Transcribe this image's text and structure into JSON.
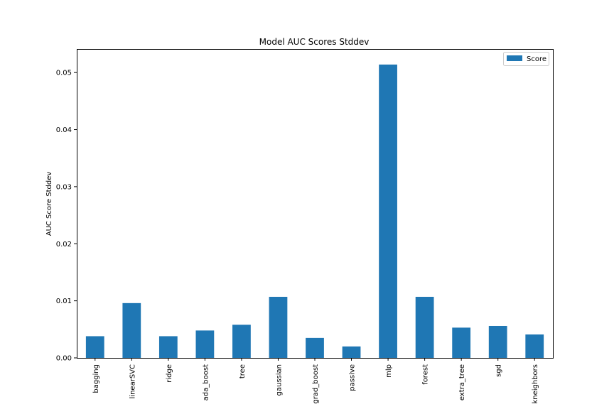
{
  "chart_data": {
    "type": "bar",
    "title": "Model AUC Scores Stddev",
    "xlabel": "",
    "ylabel": "AUC Score Stddev",
    "categories": [
      "bagging",
      "linearSVC",
      "ridge",
      "ada_boost",
      "tree",
      "gaussian",
      "grad_boost",
      "passive",
      "mlp",
      "forest",
      "extra_tree",
      "sgd",
      "kneighbors"
    ],
    "series": [
      {
        "name": "Score",
        "color": "#1f77b4",
        "values": [
          0.0038,
          0.0096,
          0.0038,
          0.0048,
          0.0058,
          0.0107,
          0.0035,
          0.002,
          0.0514,
          0.0107,
          0.0053,
          0.0056,
          0.0041
        ]
      }
    ],
    "ylim": [
      0,
      0.054
    ],
    "yticks": [
      0.0,
      0.01,
      0.02,
      0.03,
      0.04,
      0.05
    ],
    "ytick_labels": [
      "0.00",
      "0.01",
      "0.02",
      "0.03",
      "0.04",
      "0.05"
    ],
    "grid": false,
    "legend": {
      "position": "top-right",
      "entries": [
        "Score"
      ]
    }
  }
}
